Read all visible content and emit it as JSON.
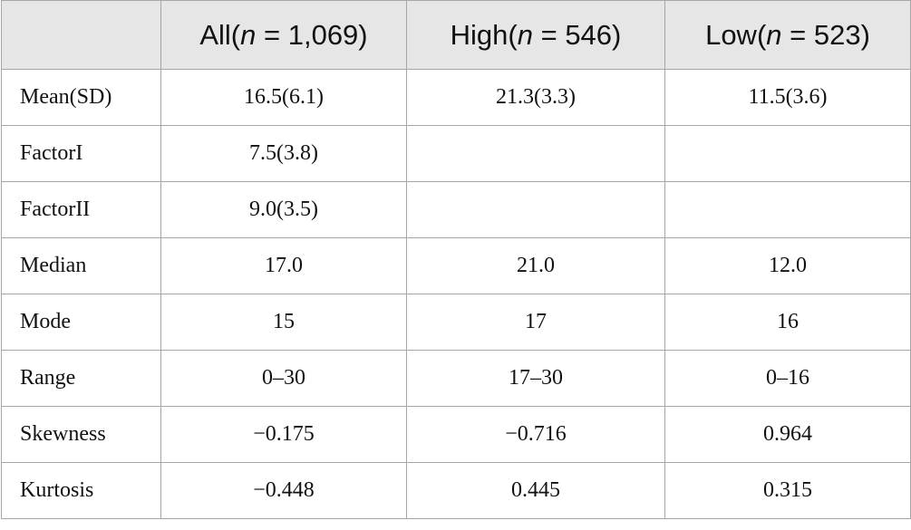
{
  "table": {
    "header": [
      {
        "pre": "All(",
        "var": "n",
        "post": " = 1,069)"
      },
      {
        "pre": "High(",
        "var": "n",
        "post": " = 546)"
      },
      {
        "pre": "Low(",
        "var": "n",
        "post": " = 523)"
      }
    ],
    "rows": [
      [
        "Mean(SD)",
        "16.5(6.1)",
        "21.3(3.3)",
        "11.5(3.6)"
      ],
      [
        "FactorI",
        "7.5(3.8)"
      ],
      [
        "FactorII",
        "9.0(3.5)"
      ],
      [
        "Median",
        "17.0",
        "21.0",
        "12.0"
      ],
      [
        "Mode",
        "15",
        "17",
        "16"
      ],
      [
        "Range",
        "0–30",
        "17–30",
        "0–16"
      ],
      [
        "Skewness",
        "−0.175",
        "−0.716",
        "0.964"
      ],
      [
        "Kurtosis",
        "−0.448",
        "0.445",
        "0.315"
      ]
    ]
  }
}
